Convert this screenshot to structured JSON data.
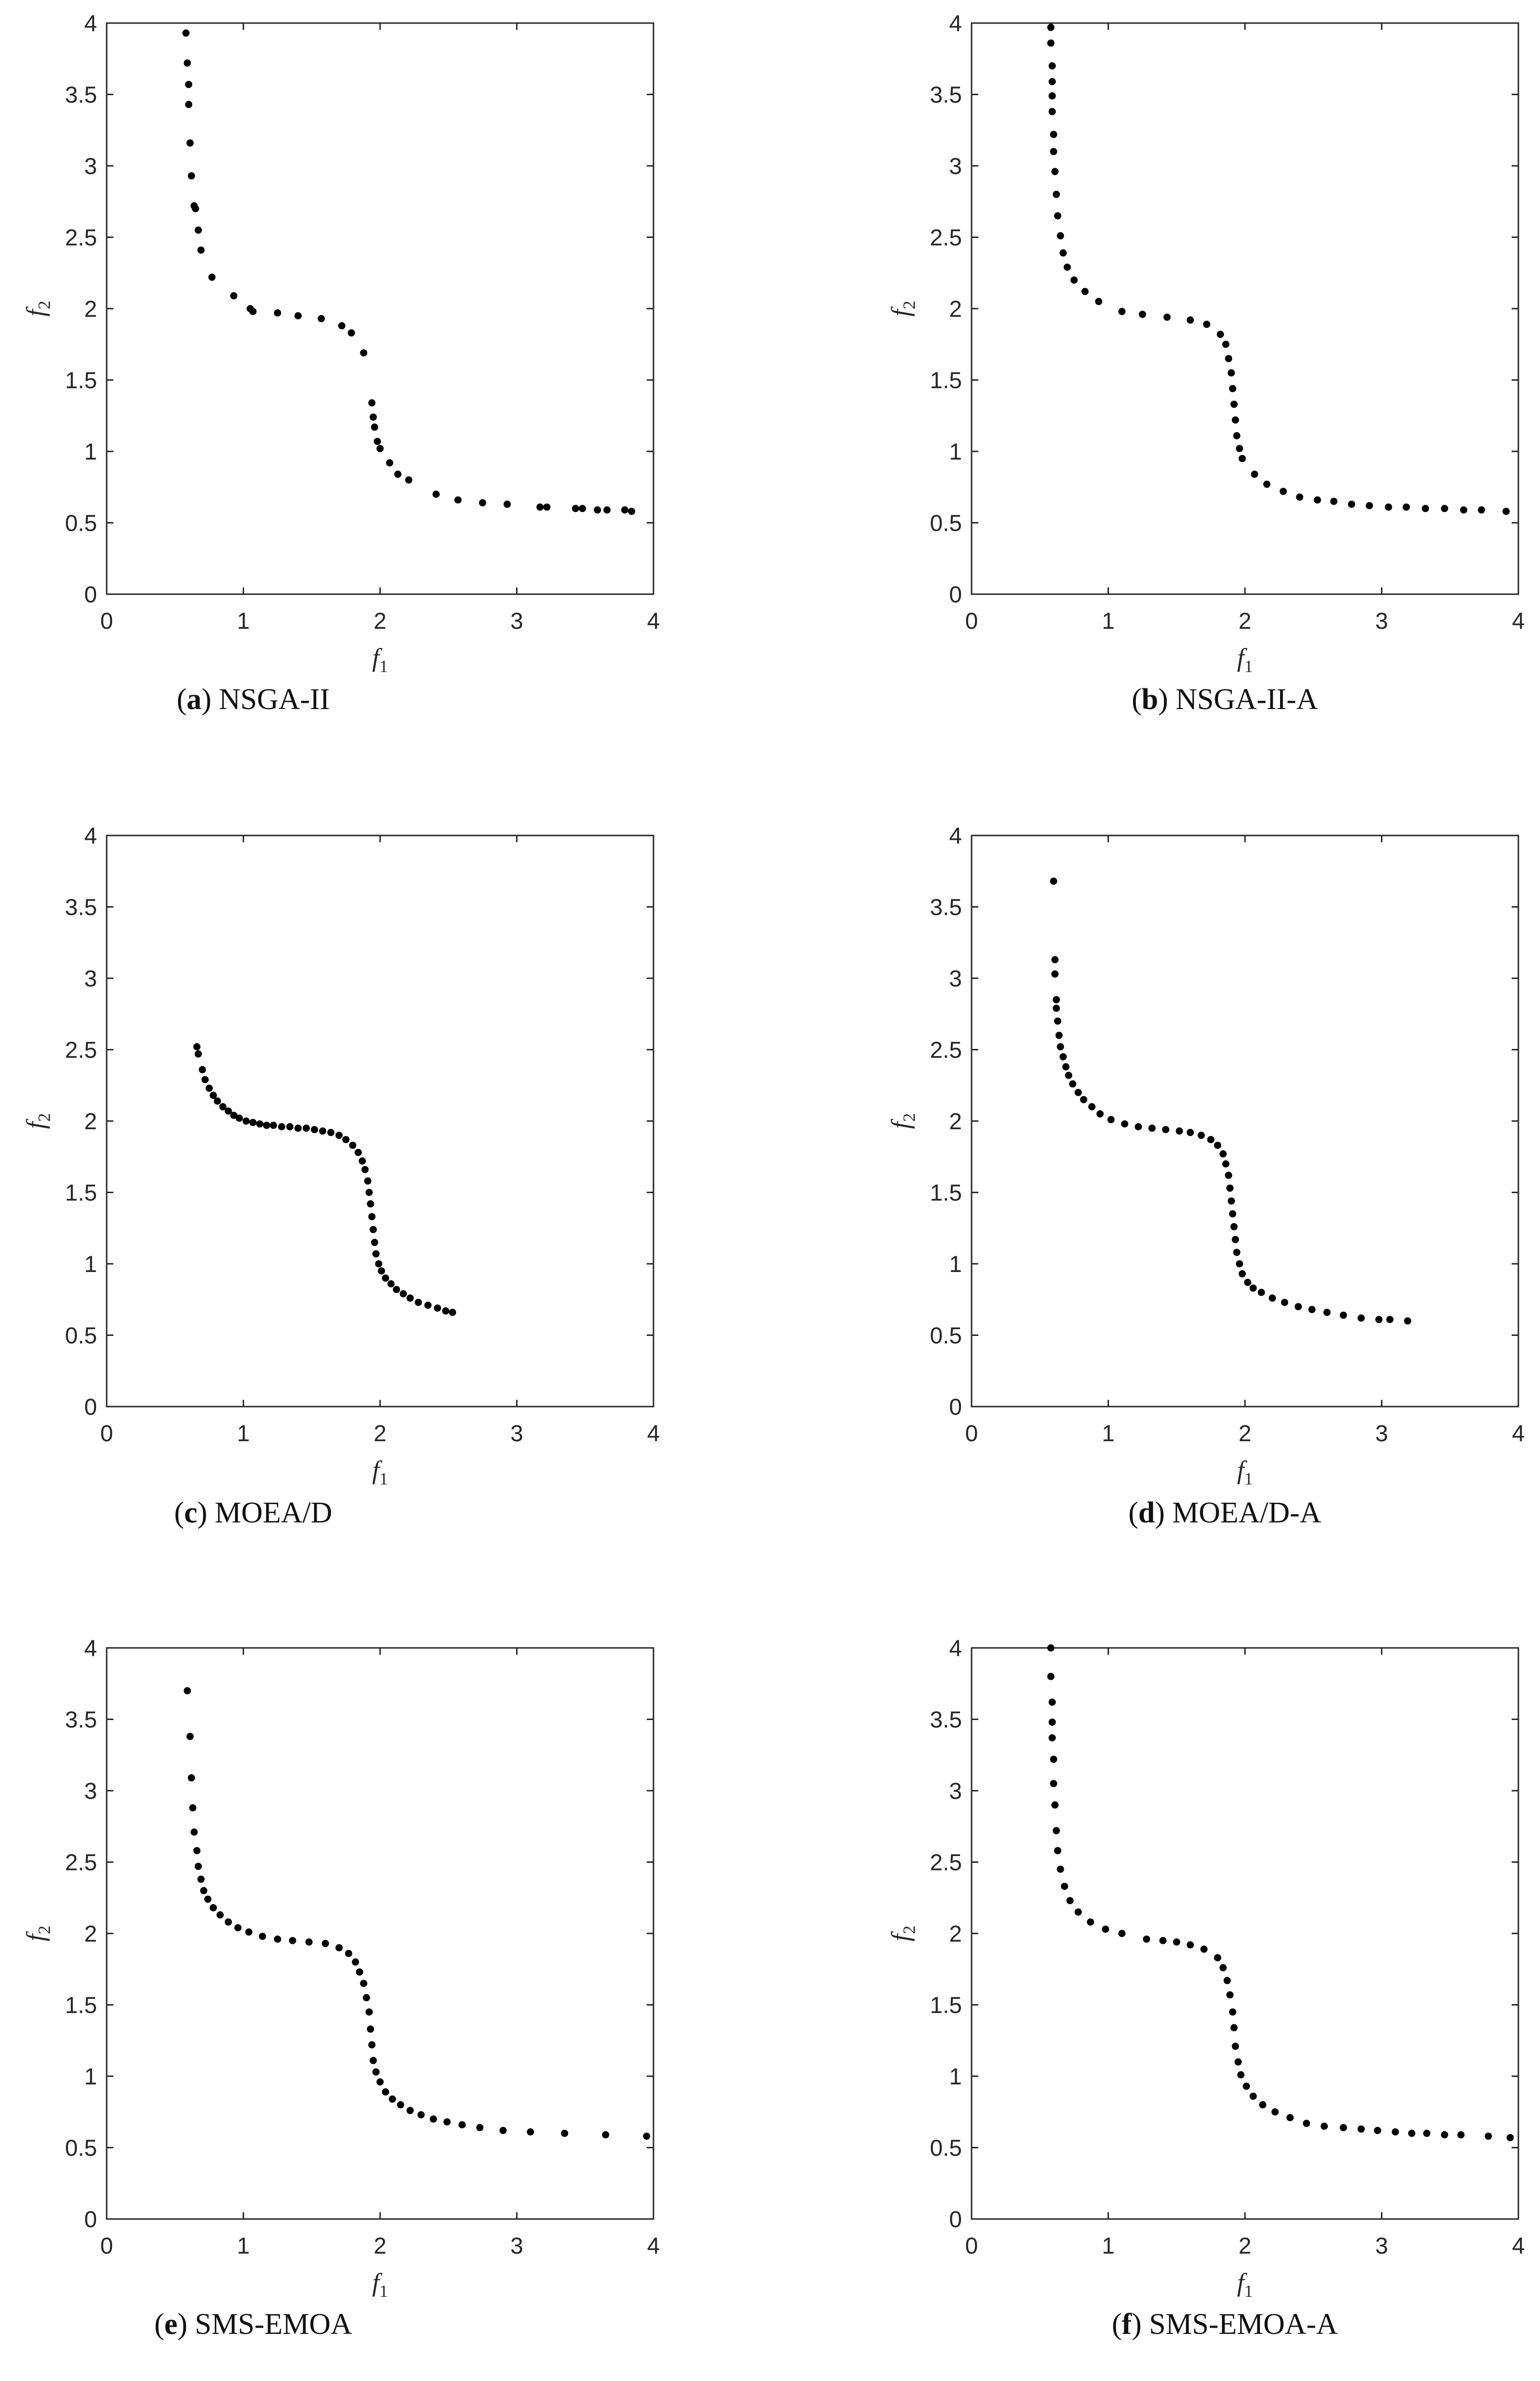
{
  "chart_data": [
    {
      "type": "scatter",
      "caption_letter": "a",
      "caption_name": "NSGA-II",
      "xlabel_base": "f",
      "xlabel_sub": "1",
      "ylabel_base": "f",
      "ylabel_sub": "2",
      "xlim": [
        0,
        4
      ],
      "ylim": [
        0,
        4
      ],
      "xticks": [
        "0",
        "1",
        "2",
        "3",
        "4"
      ],
      "yticks": [
        "0",
        "0.5",
        "1",
        "1.5",
        "2",
        "2.5",
        "3",
        "3.5",
        "4"
      ],
      "points": [
        [
          0.58,
          3.93
        ],
        [
          0.59,
          3.72
        ],
        [
          0.6,
          3.57
        ],
        [
          0.6,
          3.43
        ],
        [
          0.61,
          3.16
        ],
        [
          0.62,
          2.93
        ],
        [
          0.64,
          2.72
        ],
        [
          0.65,
          2.7
        ],
        [
          0.67,
          2.55
        ],
        [
          0.69,
          2.41
        ],
        [
          0.77,
          2.22
        ],
        [
          0.93,
          2.09
        ],
        [
          1.05,
          2.0
        ],
        [
          1.07,
          1.98
        ],
        [
          1.25,
          1.97
        ],
        [
          1.4,
          1.95
        ],
        [
          1.57,
          1.93
        ],
        [
          1.72,
          1.88
        ],
        [
          1.79,
          1.83
        ],
        [
          1.88,
          1.69
        ],
        [
          1.94,
          1.34
        ],
        [
          1.95,
          1.24
        ],
        [
          1.96,
          1.17
        ],
        [
          1.98,
          1.07
        ],
        [
          2.0,
          1.02
        ],
        [
          2.07,
          0.92
        ],
        [
          2.13,
          0.84
        ],
        [
          2.21,
          0.8
        ],
        [
          2.41,
          0.7
        ],
        [
          2.57,
          0.66
        ],
        [
          2.75,
          0.64
        ],
        [
          2.93,
          0.63
        ],
        [
          3.17,
          0.61
        ],
        [
          3.22,
          0.61
        ],
        [
          3.43,
          0.6
        ],
        [
          3.48,
          0.6
        ],
        [
          3.59,
          0.59
        ],
        [
          3.66,
          0.59
        ],
        [
          3.79,
          0.59
        ],
        [
          3.84,
          0.58
        ]
      ]
    },
    {
      "type": "scatter",
      "caption_letter": "b",
      "caption_name": "NSGA-II-A",
      "xlabel_base": "f",
      "xlabel_sub": "1",
      "ylabel_base": "f",
      "ylabel_sub": "2",
      "xlim": [
        0,
        4
      ],
      "ylim": [
        0,
        4
      ],
      "xticks": [
        "0",
        "1",
        "2",
        "3",
        "4"
      ],
      "yticks": [
        "0",
        "0.5",
        "1",
        "1.5",
        "2",
        "2.5",
        "3",
        "3.5",
        "4"
      ],
      "points": [
        [
          0.58,
          3.97
        ],
        [
          0.58,
          3.86
        ],
        [
          0.59,
          3.7
        ],
        [
          0.59,
          3.59
        ],
        [
          0.59,
          3.49
        ],
        [
          0.59,
          3.38
        ],
        [
          0.6,
          3.22
        ],
        [
          0.6,
          3.1
        ],
        [
          0.61,
          2.96
        ],
        [
          0.62,
          2.8
        ],
        [
          0.63,
          2.65
        ],
        [
          0.65,
          2.51
        ],
        [
          0.67,
          2.39
        ],
        [
          0.7,
          2.29
        ],
        [
          0.75,
          2.2
        ],
        [
          0.83,
          2.12
        ],
        [
          0.93,
          2.05
        ],
        [
          1.1,
          1.98
        ],
        [
          1.25,
          1.96
        ],
        [
          1.43,
          1.94
        ],
        [
          1.6,
          1.92
        ],
        [
          1.72,
          1.89
        ],
        [
          1.82,
          1.82
        ],
        [
          1.86,
          1.75
        ],
        [
          1.88,
          1.65
        ],
        [
          1.9,
          1.55
        ],
        [
          1.91,
          1.44
        ],
        [
          1.92,
          1.33
        ],
        [
          1.93,
          1.22
        ],
        [
          1.94,
          1.11
        ],
        [
          1.96,
          1.02
        ],
        [
          1.98,
          0.95
        ],
        [
          2.07,
          0.84
        ],
        [
          2.16,
          0.77
        ],
        [
          2.28,
          0.72
        ],
        [
          2.4,
          0.68
        ],
        [
          2.53,
          0.66
        ],
        [
          2.65,
          0.65
        ],
        [
          2.78,
          0.63
        ],
        [
          2.91,
          0.62
        ],
        [
          3.05,
          0.61
        ],
        [
          3.18,
          0.61
        ],
        [
          3.32,
          0.6
        ],
        [
          3.46,
          0.6
        ],
        [
          3.6,
          0.59
        ],
        [
          3.73,
          0.59
        ],
        [
          3.91,
          0.58
        ]
      ]
    },
    {
      "type": "scatter",
      "caption_letter": "c",
      "caption_name": "MOEA/D",
      "xlabel_base": "f",
      "xlabel_sub": "1",
      "ylabel_base": "f",
      "ylabel_sub": "2",
      "xlim": [
        0,
        4
      ],
      "ylim": [
        0,
        4
      ],
      "xticks": [
        "0",
        "1",
        "2",
        "3",
        "4"
      ],
      "yticks": [
        "0",
        "0.5",
        "1",
        "1.5",
        "2",
        "2.5",
        "3",
        "3.5",
        "4"
      ],
      "points": [
        [
          0.66,
          2.52
        ],
        [
          0.67,
          2.47
        ],
        [
          0.7,
          2.36
        ],
        [
          0.72,
          2.29
        ],
        [
          0.75,
          2.23
        ],
        [
          0.78,
          2.18
        ],
        [
          0.81,
          2.14
        ],
        [
          0.85,
          2.1
        ],
        [
          0.89,
          2.07
        ],
        [
          0.93,
          2.04
        ],
        [
          0.97,
          2.02
        ],
        [
          1.02,
          2.0
        ],
        [
          1.07,
          1.99
        ],
        [
          1.12,
          1.98
        ],
        [
          1.17,
          1.97
        ],
        [
          1.22,
          1.97
        ],
        [
          1.28,
          1.96
        ],
        [
          1.34,
          1.96
        ],
        [
          1.4,
          1.95
        ],
        [
          1.46,
          1.95
        ],
        [
          1.52,
          1.94
        ],
        [
          1.58,
          1.93
        ],
        [
          1.64,
          1.92
        ],
        [
          1.7,
          1.9
        ],
        [
          1.75,
          1.87
        ],
        [
          1.8,
          1.83
        ],
        [
          1.84,
          1.78
        ],
        [
          1.87,
          1.72
        ],
        [
          1.89,
          1.66
        ],
        [
          1.91,
          1.58
        ],
        [
          1.92,
          1.5
        ],
        [
          1.93,
          1.42
        ],
        [
          1.94,
          1.33
        ],
        [
          1.95,
          1.24
        ],
        [
          1.96,
          1.15
        ],
        [
          1.97,
          1.07
        ],
        [
          1.99,
          1.0
        ],
        [
          2.01,
          0.95
        ],
        [
          2.04,
          0.9
        ],
        [
          2.08,
          0.86
        ],
        [
          2.12,
          0.82
        ],
        [
          2.17,
          0.79
        ],
        [
          2.22,
          0.76
        ],
        [
          2.28,
          0.73
        ],
        [
          2.35,
          0.71
        ],
        [
          2.42,
          0.69
        ],
        [
          2.48,
          0.67
        ],
        [
          2.53,
          0.66
        ]
      ]
    },
    {
      "type": "scatter",
      "caption_letter": "d",
      "caption_name": "MOEA/D-A",
      "xlabel_base": "f",
      "xlabel_sub": "1",
      "ylabel_base": "f",
      "ylabel_sub": "2",
      "xlim": [
        0,
        4
      ],
      "ylim": [
        0,
        4
      ],
      "xticks": [
        "0",
        "1",
        "2",
        "3",
        "4"
      ],
      "yticks": [
        "0",
        "0.5",
        "1",
        "1.5",
        "2",
        "2.5",
        "3",
        "3.5",
        "4"
      ],
      "points": [
        [
          0.6,
          3.68
        ],
        [
          0.61,
          3.13
        ],
        [
          0.61,
          3.03
        ],
        [
          0.62,
          2.85
        ],
        [
          0.62,
          2.79
        ],
        [
          0.63,
          2.7
        ],
        [
          0.64,
          2.6
        ],
        [
          0.65,
          2.52
        ],
        [
          0.67,
          2.45
        ],
        [
          0.69,
          2.38
        ],
        [
          0.71,
          2.32
        ],
        [
          0.74,
          2.26
        ],
        [
          0.78,
          2.2
        ],
        [
          0.82,
          2.15
        ],
        [
          0.88,
          2.1
        ],
        [
          0.94,
          2.05
        ],
        [
          1.02,
          2.01
        ],
        [
          1.12,
          1.98
        ],
        [
          1.22,
          1.96
        ],
        [
          1.32,
          1.95
        ],
        [
          1.42,
          1.94
        ],
        [
          1.52,
          1.93
        ],
        [
          1.6,
          1.92
        ],
        [
          1.68,
          1.9
        ],
        [
          1.75,
          1.87
        ],
        [
          1.8,
          1.83
        ],
        [
          1.84,
          1.77
        ],
        [
          1.86,
          1.7
        ],
        [
          1.88,
          1.62
        ],
        [
          1.89,
          1.53
        ],
        [
          1.9,
          1.44
        ],
        [
          1.91,
          1.35
        ],
        [
          1.92,
          1.26
        ],
        [
          1.93,
          1.17
        ],
        [
          1.94,
          1.08
        ],
        [
          1.96,
          1.0
        ],
        [
          1.98,
          0.93
        ],
        [
          2.02,
          0.87
        ],
        [
          2.06,
          0.83
        ],
        [
          2.12,
          0.8
        ],
        [
          2.2,
          0.76
        ],
        [
          2.29,
          0.73
        ],
        [
          2.39,
          0.7
        ],
        [
          2.49,
          0.68
        ],
        [
          2.6,
          0.66
        ],
        [
          2.72,
          0.64
        ],
        [
          2.85,
          0.62
        ],
        [
          2.98,
          0.61
        ],
        [
          3.06,
          0.61
        ],
        [
          3.19,
          0.6
        ]
      ]
    },
    {
      "type": "scatter",
      "caption_letter": "e",
      "caption_name": "SMS-EMOA",
      "xlabel_base": "f",
      "xlabel_sub": "1",
      "ylabel_base": "f",
      "ylabel_sub": "2",
      "xlim": [
        0,
        4
      ],
      "ylim": [
        0,
        4
      ],
      "xticks": [
        "0",
        "1",
        "2",
        "3",
        "4"
      ],
      "yticks": [
        "0",
        "0.5",
        "1",
        "1.5",
        "2",
        "2.5",
        "3",
        "3.5",
        "4"
      ],
      "points": [
        [
          0.59,
          3.7
        ],
        [
          0.61,
          3.38
        ],
        [
          0.62,
          3.09
        ],
        [
          0.63,
          2.88
        ],
        [
          0.64,
          2.71
        ],
        [
          0.66,
          2.58
        ],
        [
          0.67,
          2.47
        ],
        [
          0.69,
          2.38
        ],
        [
          0.71,
          2.3
        ],
        [
          0.74,
          2.24
        ],
        [
          0.78,
          2.18
        ],
        [
          0.83,
          2.13
        ],
        [
          0.89,
          2.08
        ],
        [
          0.96,
          2.04
        ],
        [
          1.04,
          2.01
        ],
        [
          1.14,
          1.98
        ],
        [
          1.25,
          1.96
        ],
        [
          1.36,
          1.95
        ],
        [
          1.48,
          1.94
        ],
        [
          1.6,
          1.93
        ],
        [
          1.7,
          1.9
        ],
        [
          1.77,
          1.86
        ],
        [
          1.82,
          1.8
        ],
        [
          1.85,
          1.73
        ],
        [
          1.88,
          1.65
        ],
        [
          1.9,
          1.55
        ],
        [
          1.92,
          1.45
        ],
        [
          1.93,
          1.33
        ],
        [
          1.94,
          1.22
        ],
        [
          1.95,
          1.11
        ],
        [
          1.97,
          1.03
        ],
        [
          2.0,
          0.96
        ],
        [
          2.04,
          0.89
        ],
        [
          2.09,
          0.84
        ],
        [
          2.15,
          0.8
        ],
        [
          2.22,
          0.76
        ],
        [
          2.3,
          0.73
        ],
        [
          2.39,
          0.7
        ],
        [
          2.49,
          0.68
        ],
        [
          2.6,
          0.66
        ],
        [
          2.73,
          0.64
        ],
        [
          2.9,
          0.62
        ],
        [
          3.1,
          0.61
        ],
        [
          3.35,
          0.6
        ],
        [
          3.65,
          0.59
        ],
        [
          3.95,
          0.58
        ]
      ]
    },
    {
      "type": "scatter",
      "caption_letter": "f",
      "caption_name": "SMS-EMOA-A",
      "xlabel_base": "f",
      "xlabel_sub": "1",
      "ylabel_base": "f",
      "ylabel_sub": "2",
      "xlim": [
        0,
        4
      ],
      "ylim": [
        0,
        4
      ],
      "xticks": [
        "0",
        "1",
        "2",
        "3",
        "4"
      ],
      "yticks": [
        "0",
        "0.5",
        "1",
        "1.5",
        "2",
        "2.5",
        "3",
        "3.5",
        "4"
      ],
      "points": [
        [
          0.58,
          4.0
        ],
        [
          0.58,
          3.8
        ],
        [
          0.59,
          3.62
        ],
        [
          0.59,
          3.48
        ],
        [
          0.59,
          3.37
        ],
        [
          0.6,
          3.22
        ],
        [
          0.6,
          3.05
        ],
        [
          0.61,
          2.9
        ],
        [
          0.62,
          2.72
        ],
        [
          0.63,
          2.58
        ],
        [
          0.65,
          2.45
        ],
        [
          0.68,
          2.33
        ],
        [
          0.72,
          2.23
        ],
        [
          0.78,
          2.15
        ],
        [
          0.87,
          2.08
        ],
        [
          0.98,
          2.03
        ],
        [
          1.1,
          2.0
        ],
        [
          1.28,
          1.96
        ],
        [
          1.4,
          1.95
        ],
        [
          1.5,
          1.94
        ],
        [
          1.6,
          1.92
        ],
        [
          1.7,
          1.89
        ],
        [
          1.8,
          1.83
        ],
        [
          1.84,
          1.76
        ],
        [
          1.87,
          1.67
        ],
        [
          1.89,
          1.57
        ],
        [
          1.91,
          1.45
        ],
        [
          1.92,
          1.34
        ],
        [
          1.93,
          1.21
        ],
        [
          1.95,
          1.1
        ],
        [
          1.97,
          1.01
        ],
        [
          2.01,
          0.93
        ],
        [
          2.06,
          0.86
        ],
        [
          2.13,
          0.8
        ],
        [
          2.22,
          0.75
        ],
        [
          2.33,
          0.71
        ],
        [
          2.45,
          0.67
        ],
        [
          2.58,
          0.65
        ],
        [
          2.72,
          0.64
        ],
        [
          2.85,
          0.63
        ],
        [
          2.97,
          0.62
        ],
        [
          3.1,
          0.61
        ],
        [
          3.22,
          0.6
        ],
        [
          3.33,
          0.6
        ],
        [
          3.46,
          0.59
        ],
        [
          3.58,
          0.59
        ],
        [
          3.78,
          0.58
        ],
        [
          3.94,
          0.57
        ]
      ]
    }
  ]
}
